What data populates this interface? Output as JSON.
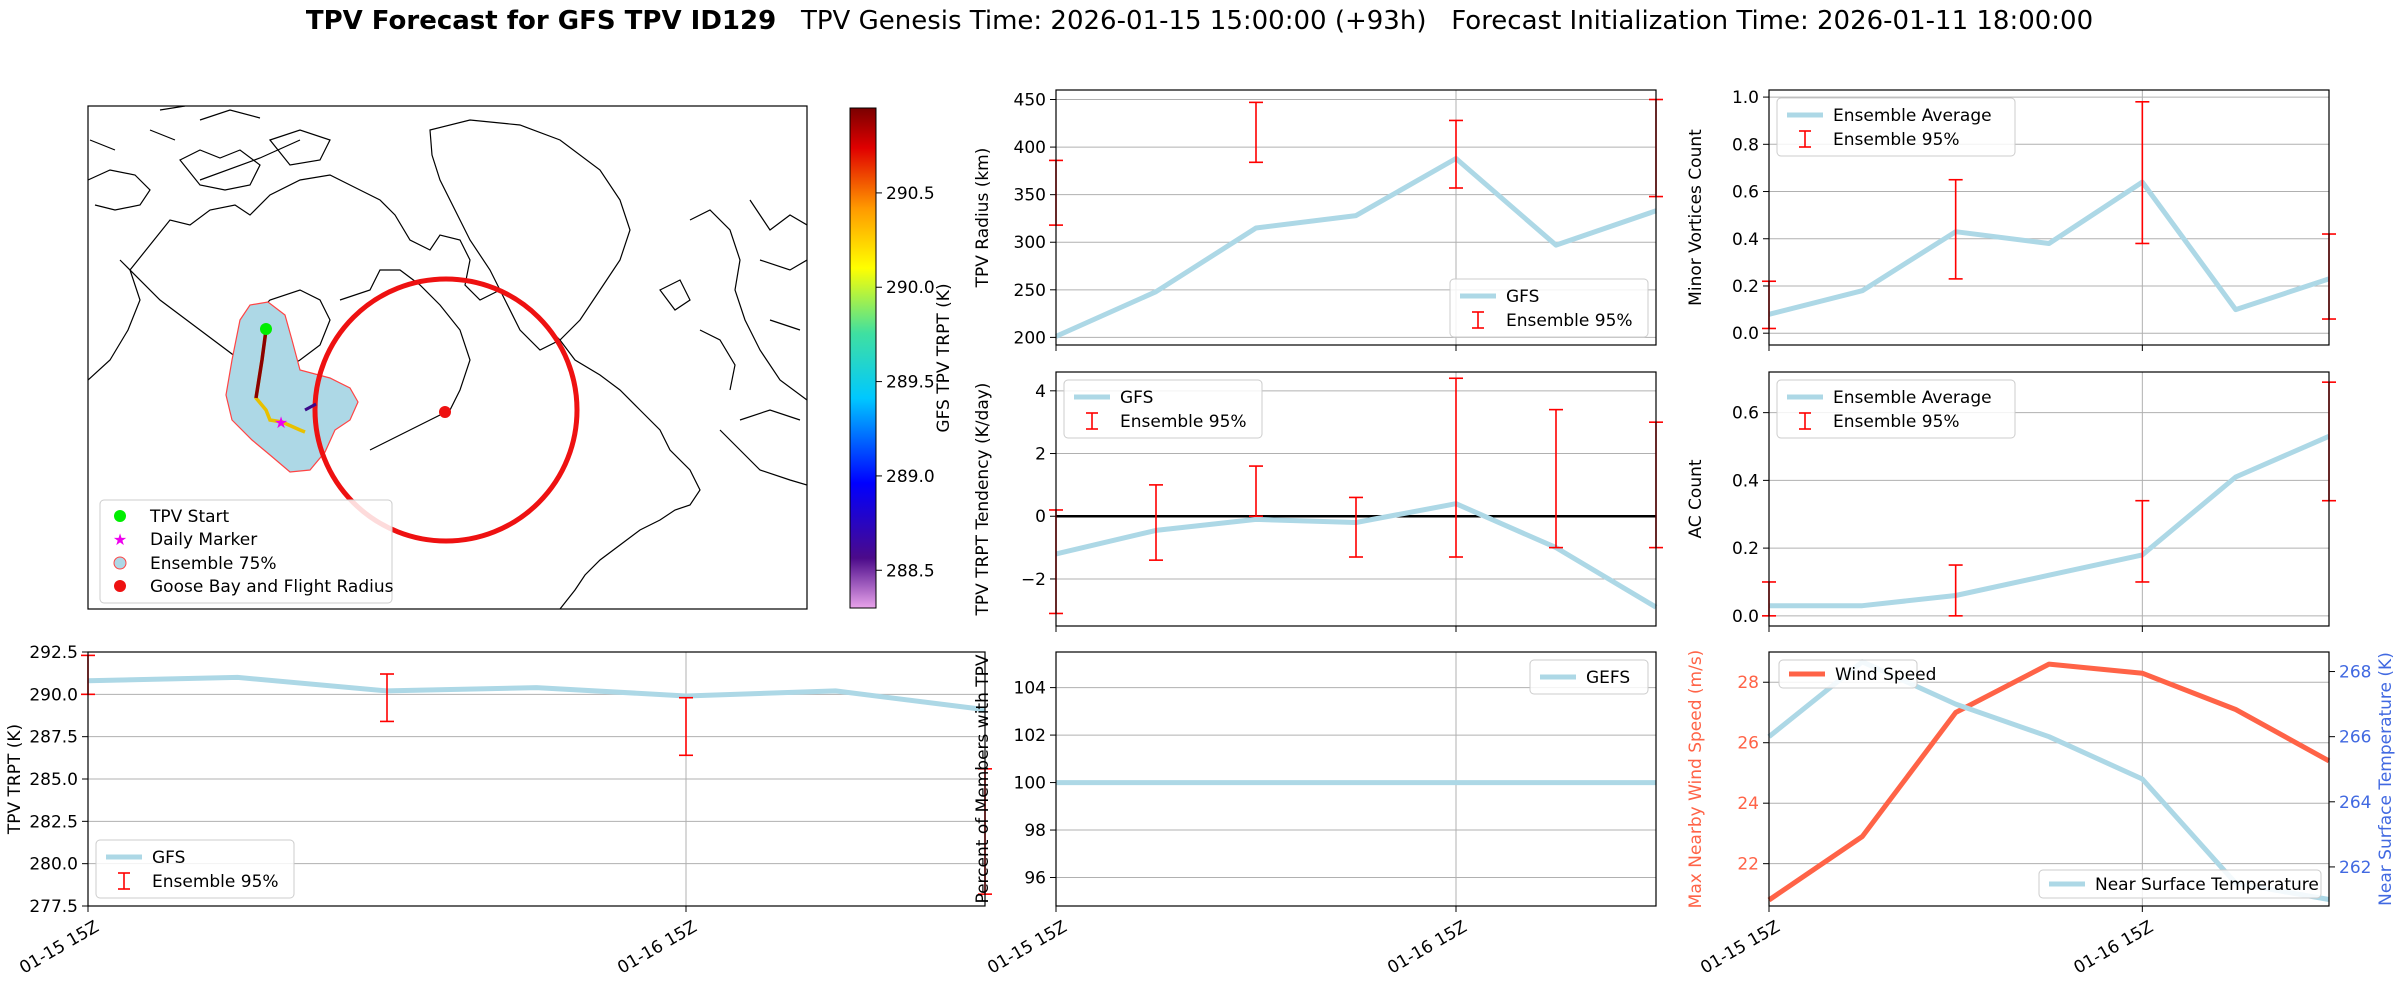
{
  "title": {
    "bold": "TPV Forecast for GFS TPV ID129",
    "rest": "   TPV Genesis Time: 2026-01-15 15:00:00 (+93h)   Forecast Initialization Time: 2026-01-11 18:00:00"
  },
  "colors": {
    "series": "#add8e6",
    "error": "#ff0000",
    "wind": "#ff6347",
    "temp_axis": "#4169e1",
    "grid": "#b0b0b0"
  },
  "map": {
    "legend": [
      "TPV Start",
      "Daily Marker",
      "Ensemble 75%",
      "Goose Bay and Flight Radius"
    ],
    "colorbar": {
      "label": "GFS TPV TRPT (K)",
      "ticks": [
        "290.5",
        "290.0",
        "289.5",
        "289.0",
        "288.5"
      ],
      "tick_values": [
        290.5,
        290.0,
        289.5,
        289.0,
        288.5
      ],
      "range": [
        288.3,
        290.95
      ]
    }
  },
  "chart_data": [
    {
      "id": "radius",
      "type": "line",
      "ylabel": "TPV Radius (km)",
      "x": [
        "2026-01-15 15Z",
        "2026-01-15 21Z",
        "2026-01-16 03Z",
        "2026-01-16 09Z",
        "2026-01-16 15Z",
        "2026-01-16 21Z",
        "2026-01-17 03Z"
      ],
      "xticks": [],
      "ylim": [
        192,
        460
      ],
      "yticks": [
        200,
        250,
        300,
        350,
        400,
        450
      ],
      "ytick_labels": [
        "200",
        "250",
        "300",
        "350",
        "400",
        "450"
      ],
      "series": [
        {
          "name": "GFS",
          "values": [
            201,
            248,
            315,
            328,
            388,
            297,
            333
          ]
        }
      ],
      "errorbars": [
        {
          "x": "2026-01-15 15Z",
          "low": 318,
          "high": 386
        },
        {
          "x": "2026-01-16 03Z",
          "low": 384,
          "high": 447
        },
        {
          "x": "2026-01-16 15Z",
          "low": 357,
          "high": 428
        },
        {
          "x": "2026-01-17 03Z",
          "low": 348,
          "high": 450
        }
      ],
      "error_label": "Ensemble 95%",
      "legend_loc": "lower-right",
      "grid": true
    },
    {
      "id": "minor",
      "type": "line",
      "ylabel": "Minor Vortices Count",
      "x": [
        "2026-01-15 15Z",
        "2026-01-15 21Z",
        "2026-01-16 03Z",
        "2026-01-16 09Z",
        "2026-01-16 15Z",
        "2026-01-16 21Z",
        "2026-01-17 03Z"
      ],
      "xticks": [],
      "ylim": [
        -0.05,
        1.03
      ],
      "yticks": [
        0,
        0.2,
        0.4,
        0.6,
        0.8,
        1.0
      ],
      "ytick_labels": [
        "0.0",
        "0.2",
        "0.4",
        "0.6",
        "0.8",
        "1.0"
      ],
      "series": [
        {
          "name": "Ensemble Average",
          "values": [
            0.08,
            0.18,
            0.43,
            0.38,
            0.64,
            0.1,
            0.23
          ]
        }
      ],
      "errorbars": [
        {
          "x": "2026-01-15 15Z",
          "low": 0.02,
          "high": 0.22
        },
        {
          "x": "2026-01-16 03Z",
          "low": 0.23,
          "high": 0.65
        },
        {
          "x": "2026-01-16 15Z",
          "low": 0.38,
          "high": 0.98
        },
        {
          "x": "2026-01-17 03Z",
          "low": 0.06,
          "high": 0.42
        }
      ],
      "error_label": "Ensemble 95%",
      "legend_loc": "upper-left",
      "grid": true
    },
    {
      "id": "tendency",
      "type": "line",
      "ylabel": "TPV TRPT Tendency (K/day)",
      "x": [
        "2026-01-15 15Z",
        "2026-01-15 21Z",
        "2026-01-16 03Z",
        "2026-01-16 09Z",
        "2026-01-16 15Z",
        "2026-01-16 21Z",
        "2026-01-17 03Z"
      ],
      "xticks": [],
      "ylim": [
        -3.5,
        4.6
      ],
      "yticks": [
        -2,
        0,
        2,
        4
      ],
      "ytick_labels": [
        "−2",
        "0",
        "2",
        "4"
      ],
      "hline": 0,
      "series": [
        {
          "name": "GFS",
          "values": [
            -1.2,
            -0.45,
            -0.1,
            -0.2,
            0.4,
            -1.0,
            -2.9
          ]
        }
      ],
      "errorbars": [
        {
          "x": "2026-01-15 15Z",
          "low": -3.1,
          "high": 0.2
        },
        {
          "x": "2026-01-15 21Z",
          "low": -1.4,
          "high": 1.0
        },
        {
          "x": "2026-01-16 03Z",
          "low": 0.0,
          "high": 1.6
        },
        {
          "x": "2026-01-16 09Z",
          "low": -1.3,
          "high": 0.6
        },
        {
          "x": "2026-01-16 15Z",
          "low": -1.3,
          "high": 4.4
        },
        {
          "x": "2026-01-16 21Z",
          "low": -1.0,
          "high": 3.4
        },
        {
          "x": "2026-01-17 03Z",
          "low": -1.0,
          "high": 3.0
        }
      ],
      "error_label": "Ensemble 95%",
      "legend_loc": "upper-left",
      "grid": true
    },
    {
      "id": "ac",
      "type": "line",
      "ylabel": "AC Count",
      "x": [
        "2026-01-15 15Z",
        "2026-01-15 21Z",
        "2026-01-16 03Z",
        "2026-01-16 09Z",
        "2026-01-16 15Z",
        "2026-01-16 21Z",
        "2026-01-17 03Z"
      ],
      "xticks": [],
      "ylim": [
        -0.03,
        0.72
      ],
      "yticks": [
        0,
        0.2,
        0.4,
        0.6
      ],
      "ytick_labels": [
        "0.0",
        "0.2",
        "0.4",
        "0.6"
      ],
      "series": [
        {
          "name": "Ensemble Average",
          "values": [
            0.03,
            0.03,
            0.06,
            0.12,
            0.18,
            0.41,
            0.53
          ]
        }
      ],
      "errorbars": [
        {
          "x": "2026-01-15 15Z",
          "low": 0.0,
          "high": 0.1
        },
        {
          "x": "2026-01-16 03Z",
          "low": 0.0,
          "high": 0.15
        },
        {
          "x": "2026-01-16 15Z",
          "low": 0.1,
          "high": 0.34
        },
        {
          "x": "2026-01-17 03Z",
          "low": 0.34,
          "high": 0.69
        }
      ],
      "error_label": "Ensemble 95%",
      "legend_loc": "upper-left",
      "grid": true
    },
    {
      "id": "trpt",
      "type": "line",
      "ylabel": "TPV TRPT (K)",
      "x": [
        "2026-01-15 15Z",
        "2026-01-15 21Z",
        "2026-01-16 03Z",
        "2026-01-16 09Z",
        "2026-01-16 15Z",
        "2026-01-16 21Z",
        "2026-01-17 03Z"
      ],
      "xticks": [
        "01-15 15Z",
        "01-16 15Z"
      ],
      "ylim": [
        277.5,
        292.5
      ],
      "yticks": [
        277.5,
        280,
        282.5,
        285,
        287.5,
        290,
        292.5
      ],
      "ytick_labels": [
        "277.5",
        "280.0",
        "282.5",
        "285.0",
        "287.5",
        "290.0",
        "292.5"
      ],
      "series": [
        {
          "name": "GFS",
          "values": [
            290.8,
            291.0,
            290.2,
            290.4,
            289.9,
            290.2,
            289.1
          ]
        }
      ],
      "errorbars": [
        {
          "x": "2026-01-15 15Z",
          "low": 290.0,
          "high": 292.3
        },
        {
          "x": "2026-01-16 03Z",
          "low": 288.4,
          "high": 291.2
        },
        {
          "x": "2026-01-16 15Z",
          "low": 286.4,
          "high": 289.8
        },
        {
          "x": "2026-01-17 03Z",
          "low": 278.2,
          "high": 285.6
        }
      ],
      "error_label": "Ensemble 95%",
      "legend_loc": "lower-left",
      "grid": true
    },
    {
      "id": "members",
      "type": "line",
      "ylabel": "Percent of Members with TPV",
      "x": [
        "2026-01-15 15Z",
        "2026-01-15 21Z",
        "2026-01-16 03Z",
        "2026-01-16 09Z",
        "2026-01-16 15Z",
        "2026-01-16 21Z",
        "2026-01-17 03Z"
      ],
      "xticks": [
        "01-15 15Z",
        "01-16 15Z"
      ],
      "ylim": [
        94.8,
        105.5
      ],
      "yticks": [
        96,
        98,
        100,
        102,
        104
      ],
      "ytick_labels": [
        "96",
        "98",
        "100",
        "102",
        "104"
      ],
      "series": [
        {
          "name": "GEFS",
          "values": [
            100,
            100,
            100,
            100,
            100,
            100,
            100
          ]
        }
      ],
      "legend_loc": "upper-right",
      "grid": true
    },
    {
      "id": "wind_temp",
      "type": "line",
      "ylabel": "Max Nearby Wind Speed (m/s)",
      "y2label": "Near Surface Temperature (K)",
      "x": [
        "2026-01-15 15Z",
        "2026-01-15 21Z",
        "2026-01-16 03Z",
        "2026-01-16 09Z",
        "2026-01-16 15Z",
        "2026-01-16 21Z",
        "2026-01-17 03Z"
      ],
      "xticks": [
        "01-15 15Z",
        "01-16 15Z"
      ],
      "ylim": [
        20.6,
        29.0
      ],
      "yticks": [
        22,
        24,
        26,
        28
      ],
      "ytick_labels": [
        "22",
        "24",
        "26",
        "28"
      ],
      "y2lim": [
        260.8,
        268.6
      ],
      "y2ticks": [
        262,
        264,
        266,
        268
      ],
      "y2tick_labels": [
        "262",
        "264",
        "266",
        "268"
      ],
      "series": [
        {
          "name": "Wind Speed",
          "axis": "left",
          "values": [
            20.8,
            22.9,
            27.0,
            28.6,
            28.3,
            27.1,
            25.4
          ]
        },
        {
          "name": "Near Surface Temperature",
          "axis": "right",
          "values": [
            266.0,
            268.3,
            267.0,
            266.0,
            264.7,
            261.5,
            261.0
          ]
        }
      ],
      "grid": true
    }
  ]
}
